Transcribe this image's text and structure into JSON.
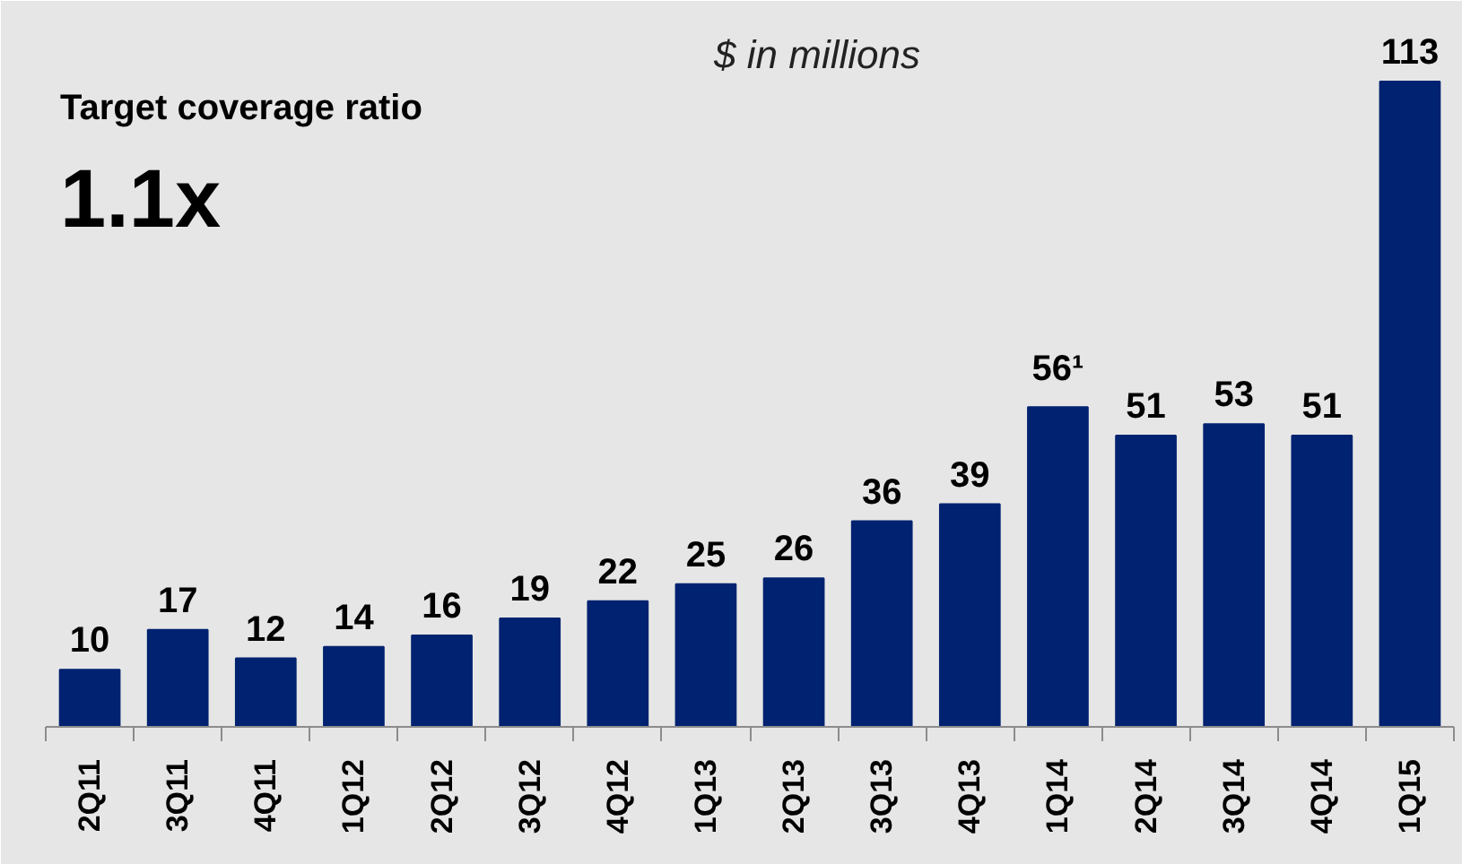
{
  "chart_data": {
    "type": "bar",
    "subtitle": "$ in millions",
    "annotations": [
      "Target coverage ratio",
      "1.1x"
    ],
    "categories": [
      "2Q11",
      "3Q11",
      "4Q11",
      "1Q12",
      "2Q12",
      "3Q12",
      "4Q12",
      "1Q13",
      "2Q13",
      "3Q13",
      "4Q13",
      "1Q14",
      "2Q14",
      "3Q14",
      "4Q14",
      "1Q15"
    ],
    "values": [
      10,
      17,
      12,
      14,
      16,
      19,
      22,
      25,
      26,
      36,
      39,
      56,
      51,
      53,
      51,
      113
    ],
    "value_labels": [
      "10",
      "17",
      "12",
      "14",
      "16",
      "19",
      "22",
      "25",
      "26",
      "36",
      "39",
      "56¹",
      "51",
      "53",
      "51",
      "113"
    ],
    "color": "#002270"
  }
}
